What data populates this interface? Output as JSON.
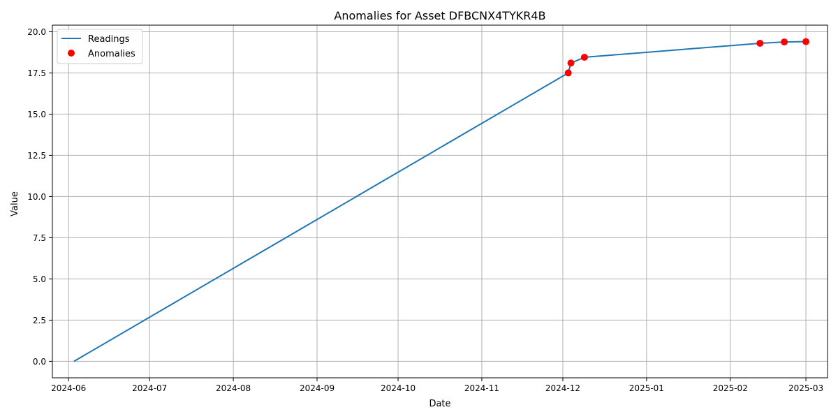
{
  "chart_data": {
    "type": "line",
    "title": "Anomalies for Asset DFBCNX4TYKR4B",
    "xlabel": "Date",
    "ylabel": "Value",
    "x_ticks": [
      "2024-06",
      "2024-07",
      "2024-08",
      "2024-09",
      "2024-10",
      "2024-11",
      "2024-12",
      "2025-01",
      "2025-02",
      "2025-03"
    ],
    "y_ticks": [
      "0.0",
      "2.5",
      "5.0",
      "7.5",
      "10.0",
      "12.5",
      "15.0",
      "17.5",
      "20.0"
    ],
    "xlim": [
      "2024-05-26",
      "2025-03-09"
    ],
    "ylim": [
      -1.0,
      20.4
    ],
    "grid": true,
    "legend_position": "top-left",
    "series": [
      {
        "name": "Readings",
        "kind": "line",
        "color": "#1f77b4",
        "points": [
          {
            "x": "2024-06-03",
            "y": 0.0
          },
          {
            "x": "2024-12-03",
            "y": 17.5
          },
          {
            "x": "2024-12-04",
            "y": 18.1
          },
          {
            "x": "2024-12-09",
            "y": 18.45
          },
          {
            "x": "2025-02-12",
            "y": 19.3
          },
          {
            "x": "2025-02-21",
            "y": 19.38
          },
          {
            "x": "2025-03-01",
            "y": 19.4
          }
        ]
      },
      {
        "name": "Anomalies",
        "kind": "scatter",
        "color": "#ff0000",
        "points": [
          {
            "x": "2024-12-03",
            "y": 17.5
          },
          {
            "x": "2024-12-04",
            "y": 18.1
          },
          {
            "x": "2024-12-09",
            "y": 18.45
          },
          {
            "x": "2025-02-12",
            "y": 19.3
          },
          {
            "x": "2025-02-21",
            "y": 19.38
          },
          {
            "x": "2025-03-01",
            "y": 19.4
          }
        ]
      }
    ]
  }
}
